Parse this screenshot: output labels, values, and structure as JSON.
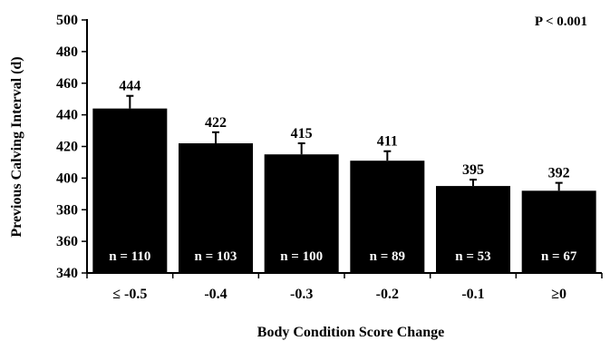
{
  "chart_data": {
    "type": "bar",
    "title": "",
    "annotation": "P < 0.001",
    "xlabel": "Body Condition Score Change",
    "ylabel": "Previous Calving Interval (d)",
    "ylim": [
      340,
      500
    ],
    "ytick_step": 20,
    "categories": [
      "≤ -0.5",
      "-0.4",
      "-0.3",
      "-0.2",
      "-0.1",
      "≥0"
    ],
    "values": [
      444,
      422,
      415,
      411,
      395,
      392
    ],
    "value_labels": [
      "444",
      "422",
      "415",
      "411",
      "395",
      "392"
    ],
    "error_upper": [
      8,
      7,
      7,
      6,
      4,
      5
    ],
    "n_labels": [
      "n = 110",
      "n = 103",
      "n = 100",
      "n = 89",
      "n = 53",
      "n = 67"
    ],
    "bar_color": "#000000",
    "grid": false,
    "legend": "none"
  }
}
